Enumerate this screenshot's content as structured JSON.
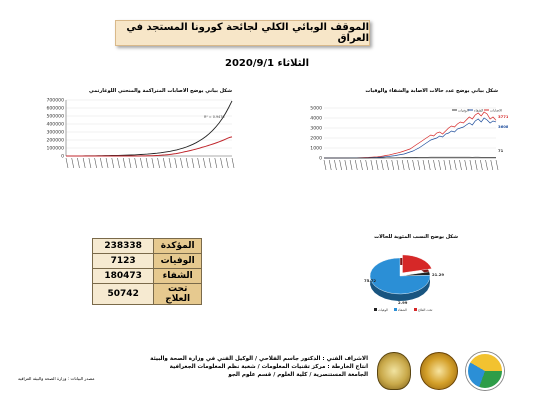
{
  "header": {
    "title": "الموقف الوبائي الكلي لجائحة كورونا المستجد في العراق",
    "date": "الثلاثاء 2020/9/1"
  },
  "charts": {
    "cumulative_title": "شكل بياني يوضح الاصابات المتراكمة والمنحني اللوغارتمي",
    "daily_title": "شكل بياني يوضح عدد حالات الاصابة والشفاء والوفيات",
    "pie_title": "شكل يوضح النسب المئوية للحالات"
  },
  "stats": [
    {
      "label": "المؤكدة",
      "value": "238338"
    },
    {
      "label": "الوفيات",
      "value": "7123"
    },
    {
      "label": "الشفاء",
      "value": "180473"
    },
    {
      "label": "تحت العلاج",
      "value": "50742"
    }
  ],
  "credits": [
    "الاشراف الفني : الدكتور جاسم الفلاحي / الوكيل الفني في وزارة الصحة والبيئة",
    "انتاج الخارطة : مركز تقنيات المعلومات / شعبة نظم المعلومات الجغرافية",
    "الجامعة المستنصرية / كلية العلوم / قسم علوم الجو"
  ],
  "source": "مصدر البيانات : وزارة الصحة والبيئة العراقية",
  "chart_data": [
    {
      "type": "line",
      "y_ticks": [
        "700000",
        "600000",
        "500000",
        "400000",
        "300000",
        "200000",
        "100000",
        "0"
      ],
      "ylim": [
        0,
        700000
      ],
      "annotation": "R² = 0.9476",
      "series": [
        {
          "values": [
            0,
            0,
            0,
            0,
            0,
            0,
            0,
            0,
            0,
            0,
            0,
            0,
            0,
            0,
            0,
            0,
            0,
            0,
            0,
            0,
            0,
            0,
            0,
            0,
            0,
            0,
            0,
            0,
            0,
            0,
            0,
            0,
            0,
            0,
            0,
            1000,
            1000,
            1500,
            2000,
            3000,
            4000,
            5000,
            6000,
            8000,
            10000,
            12000,
            14000,
            16000,
            19000,
            22000,
            26000,
            30000,
            35000,
            40000,
            46000,
            52000,
            58000,
            64000,
            70000,
            77000,
            84000,
            91000,
            99000,
            107000,
            115000,
            123000,
            131000,
            140000,
            149000,
            158000,
            167000,
            177000,
            188000,
            199000,
            210000,
            222000,
            232000,
            238338
          ]
        },
        {
          "values": [
            1000,
            1100,
            1200,
            1400,
            1600,
            1800,
            2000,
            2300,
            2600,
            3000,
            3400,
            3900,
            4400,
            5000,
            5700,
            6500,
            7400,
            8400,
            9600,
            11000,
            12500,
            14200,
            16200,
            18400,
            21000,
            24000,
            27300,
            31000,
            35300,
            40200,
            45700,
            52000,
            59200,
            67400,
            76700,
            87300,
            99300,
            113000,
            128600,
            146300,
            166500,
            189400,
            215500,
            245200,
            279000,
            317500,
            361300,
            411100,
            467800,
            532300,
            605700,
            689300
          ]
        }
      ]
    },
    {
      "type": "line",
      "y_ticks": [
        "5000",
        "4000",
        "3000",
        "2000",
        "1000",
        "0"
      ],
      "ylim": [
        0,
        5000
      ],
      "legend": [
        "الاصابات",
        "الشفاء",
        "الوفيات"
      ],
      "annotations": [
        "3771",
        "3608",
        "71"
      ],
      "colors": {
        "cases": "#d62828",
        "recovered": "#1f4e9c",
        "deaths": "#333333"
      },
      "series": [
        {
          "name": "الاصابات",
          "values": [
            0,
            0,
            0,
            2,
            3,
            5,
            8,
            10,
            12,
            15,
            20,
            25,
            30,
            40,
            50,
            60,
            80,
            100,
            120,
            150,
            200,
            260,
            300,
            380,
            450,
            520,
            600,
            700,
            800,
            900,
            1100,
            1300,
            1500,
            1700,
            1900,
            2100,
            2300,
            2200,
            2500,
            2600,
            2400,
            2700,
            3000,
            3200,
            3100,
            3400,
            3600,
            3500,
            3800,
            4100,
            3900,
            4300,
            4500,
            4200,
            4600,
            4400,
            3900,
            4100,
            3771
          ]
        },
        {
          "name": "الشفاء",
          "values": [
            0,
            0,
            0,
            0,
            0,
            1,
            2,
            3,
            5,
            6,
            8,
            10,
            15,
            20,
            25,
            30,
            40,
            50,
            60,
            80,
            100,
            130,
            160,
            200,
            240,
            300,
            350,
            400,
            500,
            600,
            700,
            850,
            1000,
            1200,
            1400,
            1600,
            1800,
            1900,
            2000,
            2200,
            2100,
            2400,
            2500,
            2700,
            2600,
            2900,
            3000,
            3100,
            3300,
            3500,
            3300,
            3700,
            3900,
            3600,
            4000,
            3800,
            3500,
            3700,
            3608
          ]
        },
        {
          "name": "الوفيات",
          "values": [
            0,
            0,
            0,
            0,
            0,
            0,
            1,
            1,
            1,
            2,
            2,
            3,
            3,
            4,
            5,
            5,
            6,
            7,
            8,
            10,
            12,
            15,
            18,
            20,
            25,
            30,
            35,
            40,
            45,
            50,
            55,
            60,
            65,
            70,
            72,
            75,
            78,
            80,
            82,
            85,
            80,
            78,
            82,
            84,
            80,
            78,
            76,
            80,
            82,
            78,
            75,
            76,
            78,
            74,
            72,
            73,
            70,
            72,
            71
          ]
        }
      ]
    },
    {
      "type": "pie",
      "categories": [
        "تحت العلاج",
        "الوفيات",
        "الشفاء"
      ],
      "values": [
        21.29,
        2.99,
        75.72
      ],
      "value_labels": [
        "21.29",
        "2.99",
        "75.72"
      ],
      "colors": [
        "#d62828",
        "#222222",
        "#2b8fd6"
      ],
      "legend": [
        "الوفيات",
        "الشفاء",
        "تحت العلاج"
      ]
    }
  ]
}
